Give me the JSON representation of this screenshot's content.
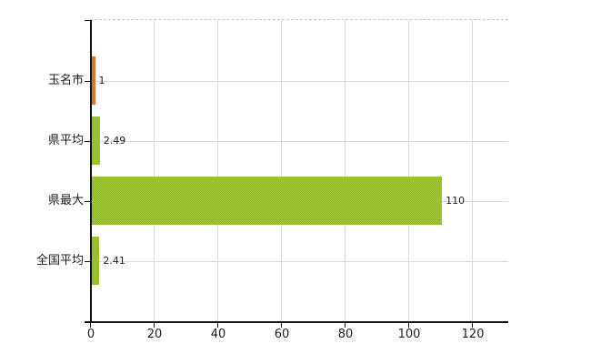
{
  "chart_data": {
    "type": "bar",
    "orientation": "horizontal",
    "title": "",
    "xlabel": "",
    "ylabel": "",
    "legend": "none",
    "categories": [
      "玉名市",
      "県平均",
      "県最大",
      "全国平均"
    ],
    "values": [
      1,
      2.49,
      110,
      2.41
    ],
    "value_labels": [
      "1",
      "2.49",
      "110",
      "2.41"
    ],
    "x_ticks": [
      0,
      20,
      40,
      60,
      80,
      100,
      120
    ],
    "xlim": [
      0,
      131.4
    ],
    "grid": {
      "vertical": true,
      "horizontal": "category-centers",
      "top_border": "dashed"
    },
    "bar_colors": [
      "#e6802d",
      "#a2c838",
      "#a2c838",
      "#a2c838"
    ],
    "bar_speckle_colors": [
      "#d06a1c",
      "#90b928",
      "#90b928",
      "#90b928"
    ]
  },
  "colors": {
    "background": "#ffffff",
    "axis": "#111111",
    "grid_vertical": "#d8d8d8",
    "grid_horizontal": "#d3dad3",
    "plot_top_border": "#c8c8c8",
    "text": "#1c1c1c"
  }
}
